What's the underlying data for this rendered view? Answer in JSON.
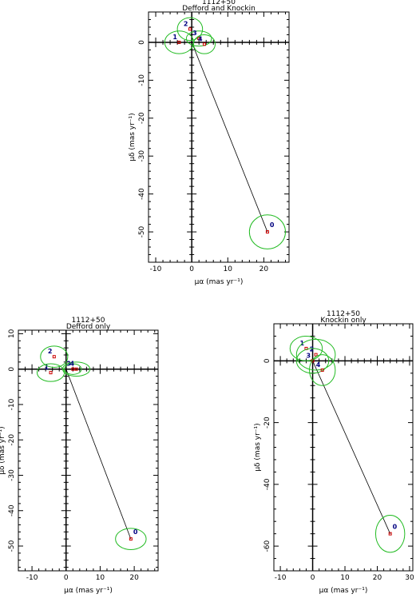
{
  "chart_data": [
    {
      "type": "scatter",
      "title": "1112+50",
      "subtitle": "Defford and Knockin",
      "xlabel": "μα (mas yr⁻¹)",
      "ylabel": "μδ (mas yr⁻¹)",
      "xlim": [
        -12,
        27
      ],
      "ylim": [
        -58,
        8
      ],
      "xticks": [
        -10,
        0,
        10,
        20
      ],
      "yticks": [
        0,
        -10,
        -20,
        -30,
        -40,
        -50
      ],
      "line_points": [
        [
          0,
          0
        ],
        [
          21,
          -50
        ]
      ],
      "points": [
        {
          "label": "0",
          "x": 21,
          "y": -50,
          "ex": 5,
          "ey": 4.5,
          "angle": 0
        },
        {
          "label": "1",
          "x": -3.5,
          "y": 0,
          "ex": 4,
          "ey": 3,
          "angle": 0
        },
        {
          "label": "2",
          "x": -0.5,
          "y": 3.5,
          "ex": 3.5,
          "ey": 3,
          "angle": 0
        },
        {
          "label": "3",
          "x": 2,
          "y": 1,
          "ex": 3.5,
          "ey": 2,
          "angle": 0
        },
        {
          "label": "4",
          "x": 3.5,
          "y": -0.5,
          "ex": 3,
          "ey": 2.5,
          "angle": 0
        }
      ]
    },
    {
      "type": "scatter",
      "title": "1112+50",
      "subtitle": "Defford only",
      "xlabel": "μα (mas yr⁻¹)",
      "ylabel": "μδ (mas yr⁻¹)",
      "xlim": [
        -14,
        27
      ],
      "ylim": [
        -57,
        11
      ],
      "xticks": [
        -10,
        0,
        10,
        20
      ],
      "yticks": [
        10,
        0,
        -10,
        -20,
        -30,
        -40,
        -50
      ],
      "line_points": [
        [
          0,
          0
        ],
        [
          19,
          -48
        ]
      ],
      "points": [
        {
          "label": "0",
          "x": 19,
          "y": -48,
          "ex": 4.5,
          "ey": 3,
          "angle": 0
        },
        {
          "label": "1",
          "x": -4.5,
          "y": -1,
          "ex": 4,
          "ey": 2.5,
          "angle": 0
        },
        {
          "label": "2",
          "x": -3.5,
          "y": 3.5,
          "ex": 4,
          "ey": 3,
          "angle": 0
        },
        {
          "label": "3",
          "x": 2,
          "y": 0,
          "ex": 2.5,
          "ey": 1.5,
          "angle": 0
        },
        {
          "label": "4",
          "x": 3,
          "y": 0,
          "ex": 4,
          "ey": 2,
          "angle": 0
        }
      ]
    },
    {
      "type": "scatter",
      "title": "1112+50",
      "subtitle": "Knockin only",
      "xlabel": "μα (mas yr⁻¹)",
      "ylabel": "μδ (mas yr⁻¹)",
      "xlim": [
        -12,
        31
      ],
      "ylim": [
        -68,
        12
      ],
      "xticks": [
        -10,
        0,
        10,
        20,
        30
      ],
      "yticks": [
        0,
        -20,
        -40,
        -60
      ],
      "line_points": [
        [
          0,
          0
        ],
        [
          24,
          -56
        ]
      ],
      "points": [
        {
          "label": "0",
          "x": 24,
          "y": -56,
          "ex": 4.5,
          "ey": 6,
          "angle": 0
        },
        {
          "label": "1",
          "x": -2,
          "y": 4,
          "ex": 5,
          "ey": 4,
          "angle": 0
        },
        {
          "label": "2",
          "x": 1,
          "y": 2,
          "ex": 6,
          "ey": 5,
          "angle": 0
        },
        {
          "label": "3",
          "x": 0,
          "y": 0,
          "ex": 5,
          "ey": 4,
          "angle": 0
        },
        {
          "label": "4",
          "x": 3,
          "y": -3,
          "ex": 4,
          "ey": 5,
          "angle": 0
        }
      ]
    }
  ]
}
